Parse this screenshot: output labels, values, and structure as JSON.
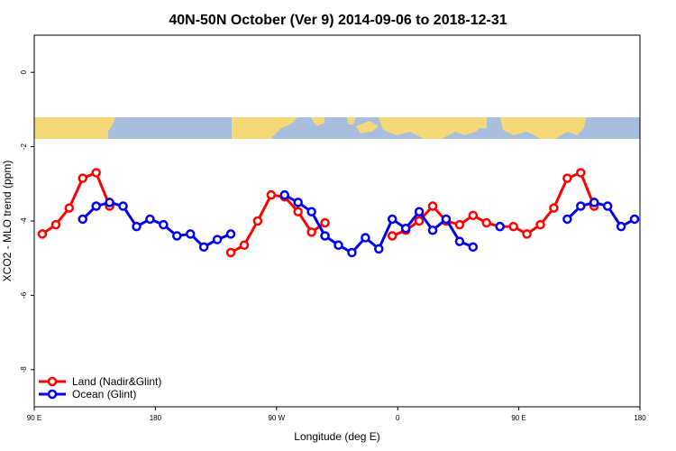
{
  "chart_data": {
    "type": "line",
    "title": "40N-50N October (Ver 9)   2014-09-06 to 2018-12-31",
    "xlabel": "Longitude (deg E)",
    "ylabel": "XCO2 - MLO trend (ppm)",
    "xlim": [
      90,
      540
    ],
    "ylim": [
      -9,
      1
    ],
    "x_ticks": [
      {
        "value": 90,
        "label": "90 E"
      },
      {
        "value": 180,
        "label": "180"
      },
      {
        "value": 270,
        "label": "90 W"
      },
      {
        "value": 360,
        "label": "0"
      },
      {
        "value": 450,
        "label": "90 E"
      },
      {
        "value": 540,
        "label": "180"
      }
    ],
    "y_ticks": [
      {
        "value": 0,
        "label": "0"
      },
      {
        "value": -2,
        "label": "-2"
      },
      {
        "value": -4,
        "label": "-4"
      },
      {
        "value": -6,
        "label": "-6"
      },
      {
        "value": -8,
        "label": "-8"
      }
    ],
    "legend": {
      "placement": "bottom-left"
    },
    "series": [
      {
        "name": "Land (Nadir&Glint)",
        "color": "#ff0000",
        "segments": [
          [
            [
              96,
              -4.35
            ],
            [
              106,
              -4.1
            ],
            [
              116,
              -3.65
            ],
            [
              126,
              -2.85
            ],
            [
              136,
              -2.7
            ],
            [
              146,
              -3.6
            ]
          ],
          [
            [
              236,
              -4.85
            ],
            [
              246,
              -4.65
            ],
            [
              256,
              -4.0
            ],
            [
              266,
              -3.3
            ],
            [
              276,
              -3.35
            ],
            [
              286,
              -3.75
            ],
            [
              296,
              -4.3
            ],
            [
              306,
              -4.05
            ]
          ],
          [
            [
              356,
              -4.4
            ],
            [
              366,
              -4.25
            ],
            [
              376,
              -4.0
            ],
            [
              386,
              -3.6
            ],
            [
              396,
              -4.0
            ],
            [
              406,
              -4.1
            ],
            [
              416,
              -3.85
            ],
            [
              426,
              -4.05
            ],
            [
              436,
              -4.15
            ],
            [
              446,
              -4.15
            ],
            [
              456,
              -4.35
            ],
            [
              466,
              -4.1
            ],
            [
              476,
              -3.65
            ],
            [
              486,
              -2.85
            ],
            [
              496,
              -2.7
            ],
            [
              506,
              -3.6
            ]
          ]
        ]
      },
      {
        "name": "Ocean (Glint)",
        "color": "#0000ee",
        "segments": [
          [
            [
              126,
              -3.95
            ],
            [
              136,
              -3.6
            ],
            [
              146,
              -3.5
            ],
            [
              156,
              -3.6
            ],
            [
              166,
              -4.15
            ],
            [
              176,
              -3.95
            ],
            [
              186,
              -4.1
            ],
            [
              196,
              -4.4
            ],
            [
              206,
              -4.35
            ],
            [
              216,
              -4.7
            ],
            [
              226,
              -4.5
            ],
            [
              236,
              -4.35
            ]
          ],
          [
            [
              276,
              -3.3
            ],
            [
              286,
              -3.5
            ],
            [
              296,
              -3.75
            ],
            [
              306,
              -4.4
            ],
            [
              316,
              -4.65
            ],
            [
              326,
              -4.85
            ],
            [
              336,
              -4.45
            ],
            [
              346,
              -4.75
            ],
            [
              356,
              -3.95
            ],
            [
              366,
              -4.2
            ],
            [
              376,
              -3.75
            ],
            [
              386,
              -4.25
            ],
            [
              396,
              -3.95
            ],
            [
              406,
              -4.55
            ],
            [
              416,
              -4.7
            ]
          ],
          [
            [
              436,
              -4.15
            ]
          ],
          [
            [
              486,
              -3.95
            ],
            [
              496,
              -3.6
            ],
            [
              506,
              -3.5
            ],
            [
              516,
              -3.6
            ],
            [
              526,
              -4.15
            ],
            [
              536,
              -3.95
            ]
          ]
        ]
      }
    ]
  }
}
